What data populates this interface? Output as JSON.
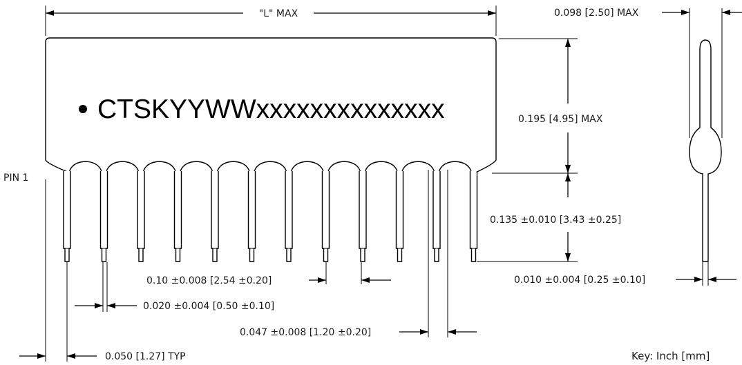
{
  "marking": {
    "bullet": "●",
    "text": "CTSKYYWWxxxxxxxxxxxxxx"
  },
  "labels": {
    "length": "\"L\" MAX",
    "pin1": "PIN 1",
    "thickness": "0.098 [2.50] MAX",
    "height": "0.195 [4.95] MAX",
    "lead_length": "0.135 ±0.010 [3.43 ±0.25]",
    "pitch": "0.10 ±0.008 [2.54 ±0.20]",
    "lead_width": "0.020 ±0.004 [0.50 ±0.10]",
    "shoulder_width": "0.047 ±0.008 [1.20 ±0.20]",
    "lead_thickness": "0.010 ±0.004 [0.25 ±0.10]",
    "pin1_offset": "0.050 [1.27] TYP",
    "key": "Key: Inch [mm]"
  },
  "package": {
    "pin_count": 12
  }
}
